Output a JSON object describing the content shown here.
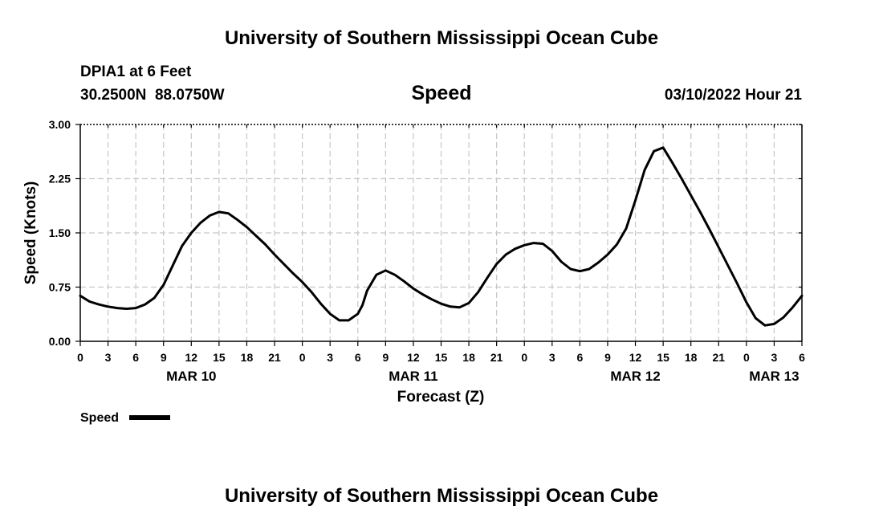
{
  "header": {
    "title": "University of Southern Mississippi Ocean Cube",
    "station": "DPIA1 at 6 Feet",
    "coords": "30.2500N  88.0750W",
    "variable": "Speed",
    "datetime": "03/10/2022 Hour 21"
  },
  "legend": {
    "label": "Speed",
    "color": "#000000"
  },
  "footer": {
    "title": "University of Southern Mississippi Ocean Cube"
  },
  "chart_data": {
    "type": "line",
    "title": "Speed",
    "xlabel": "Forecast (Z)",
    "ylabel": "Speed (Knots)",
    "xlim": [
      0,
      78
    ],
    "ylim": [
      0,
      3
    ],
    "yticks": [
      0,
      0.75,
      1.5,
      2.25,
      3
    ],
    "ytick_labels": [
      "0.00",
      "0.75",
      "1.50",
      "2.25",
      "3.00"
    ],
    "xticks": [
      0,
      3,
      6,
      9,
      12,
      15,
      18,
      21,
      24,
      27,
      30,
      33,
      36,
      39,
      42,
      45,
      48,
      51,
      54,
      57,
      60,
      63,
      66,
      69,
      72,
      75,
      78
    ],
    "xtick_labels": [
      "0",
      "3",
      "6",
      "9",
      "12",
      "15",
      "18",
      "21",
      "0",
      "3",
      "6",
      "9",
      "12",
      "15",
      "18",
      "21",
      "0",
      "3",
      "6",
      "9",
      "12",
      "15",
      "18",
      "21",
      "0",
      "3",
      "6"
    ],
    "day_labels": [
      {
        "x": 12,
        "label": "MAR 10"
      },
      {
        "x": 36,
        "label": "MAR 11"
      },
      {
        "x": 60,
        "label": "MAR 12"
      },
      {
        "x": 75,
        "label": "MAR 13"
      }
    ],
    "grid": true,
    "legend_position": "bottom-left",
    "series": [
      {
        "name": "Speed",
        "color": "#000000",
        "x": [
          0,
          1,
          2,
          3,
          4,
          5,
          6,
          7,
          8,
          9,
          10,
          11,
          12,
          13,
          14,
          15,
          16,
          17,
          18,
          19,
          20,
          21,
          22,
          23,
          24,
          25,
          26,
          27,
          28,
          29,
          30,
          30.5,
          31,
          32,
          33,
          34,
          35,
          36,
          37,
          38,
          39,
          40,
          41,
          42,
          43,
          44,
          45,
          46,
          47,
          48,
          49,
          50,
          51,
          52,
          53,
          54,
          55,
          56,
          57,
          58,
          59,
          60,
          61,
          62,
          63,
          64,
          65,
          66,
          67,
          68,
          69,
          70,
          71,
          72,
          73,
          74,
          75,
          76,
          77,
          78
        ],
        "values": [
          0.63,
          0.55,
          0.51,
          0.48,
          0.46,
          0.45,
          0.46,
          0.51,
          0.6,
          0.78,
          1.05,
          1.32,
          1.5,
          1.64,
          1.74,
          1.79,
          1.77,
          1.68,
          1.58,
          1.46,
          1.34,
          1.2,
          1.07,
          0.94,
          0.82,
          0.68,
          0.52,
          0.38,
          0.29,
          0.29,
          0.38,
          0.5,
          0.7,
          0.92,
          0.98,
          0.92,
          0.83,
          0.73,
          0.65,
          0.58,
          0.52,
          0.48,
          0.47,
          0.53,
          0.68,
          0.88,
          1.07,
          1.2,
          1.28,
          1.33,
          1.36,
          1.35,
          1.25,
          1.1,
          1.0,
          0.97,
          1.0,
          1.09,
          1.2,
          1.34,
          1.56,
          1.95,
          2.37,
          2.63,
          2.68,
          2.47,
          2.25,
          2.02,
          1.79,
          1.55,
          1.3,
          1.05,
          0.8,
          0.54,
          0.32,
          0.22,
          0.24,
          0.33,
          0.47,
          0.63
        ]
      }
    ]
  }
}
